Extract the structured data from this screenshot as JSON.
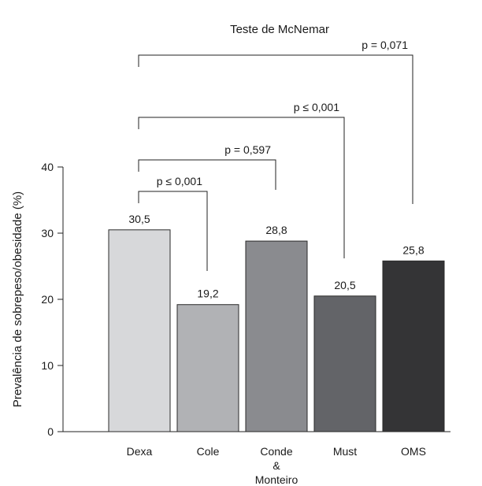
{
  "chart_data": {
    "type": "bar",
    "title": "Teste de McNemar",
    "ylabel": "Prevalência de sobrepeso/obesidade (%)",
    "xlabel": "",
    "ylim": [
      0,
      40
    ],
    "yticks": [
      0,
      10,
      20,
      30,
      40
    ],
    "grid": false,
    "categories": [
      [
        "Dexa"
      ],
      [
        "Cole"
      ],
      [
        "Conde",
        "&",
        "Monteiro"
      ],
      [
        "Must"
      ],
      [
        "OMS"
      ]
    ],
    "values": [
      30.5,
      19.2,
      28.8,
      20.5,
      25.8
    ],
    "value_labels": [
      "30,5",
      "19,2",
      "28,8",
      "20,5",
      "25,8"
    ],
    "bar_colors": [
      "#d7d8da",
      "#b1b2b5",
      "#8a8b8f",
      "#636468",
      "#343436"
    ],
    "comparisons": [
      {
        "from": 0,
        "to": 1,
        "label": "p ≤ 0,001"
      },
      {
        "from": 0,
        "to": 2,
        "label": "p = 0,597"
      },
      {
        "from": 0,
        "to": 3,
        "label": "p ≤ 0,001"
      },
      {
        "from": 0,
        "to": 4,
        "label": "p = 0,071"
      }
    ]
  }
}
